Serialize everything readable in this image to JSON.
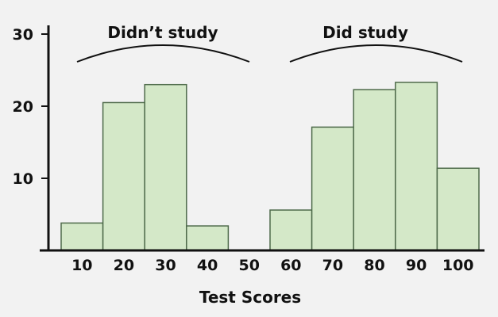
{
  "chart_data": {
    "type": "bar",
    "title": "",
    "xlabel": "Test Scores",
    "ylabel": "",
    "ylim": [
      0,
      30
    ],
    "yticks": [
      10,
      20,
      30
    ],
    "categories": [
      "10",
      "20",
      "30",
      "40",
      "50",
      "60",
      "70",
      "80",
      "90",
      "100"
    ],
    "values": [
      3.8,
      20.5,
      23,
      3.4,
      0,
      5.6,
      17.1,
      22.3,
      23.3,
      11.4
    ],
    "groups": [
      {
        "label": "Didn’t study",
        "categories": [
          "10",
          "20",
          "30",
          "40"
        ]
      },
      {
        "label": "Did study",
        "categories": [
          "60",
          "70",
          "80",
          "90",
          "100"
        ]
      }
    ],
    "grid": false,
    "colors": {
      "bar_fill": "#d4e8c8",
      "bar_stroke": "#4e6a4a",
      "axis": "#111111",
      "background": "#f2f2f2"
    }
  },
  "annotations": {
    "left_group": "Didn’t study",
    "right_group": "Did study"
  }
}
